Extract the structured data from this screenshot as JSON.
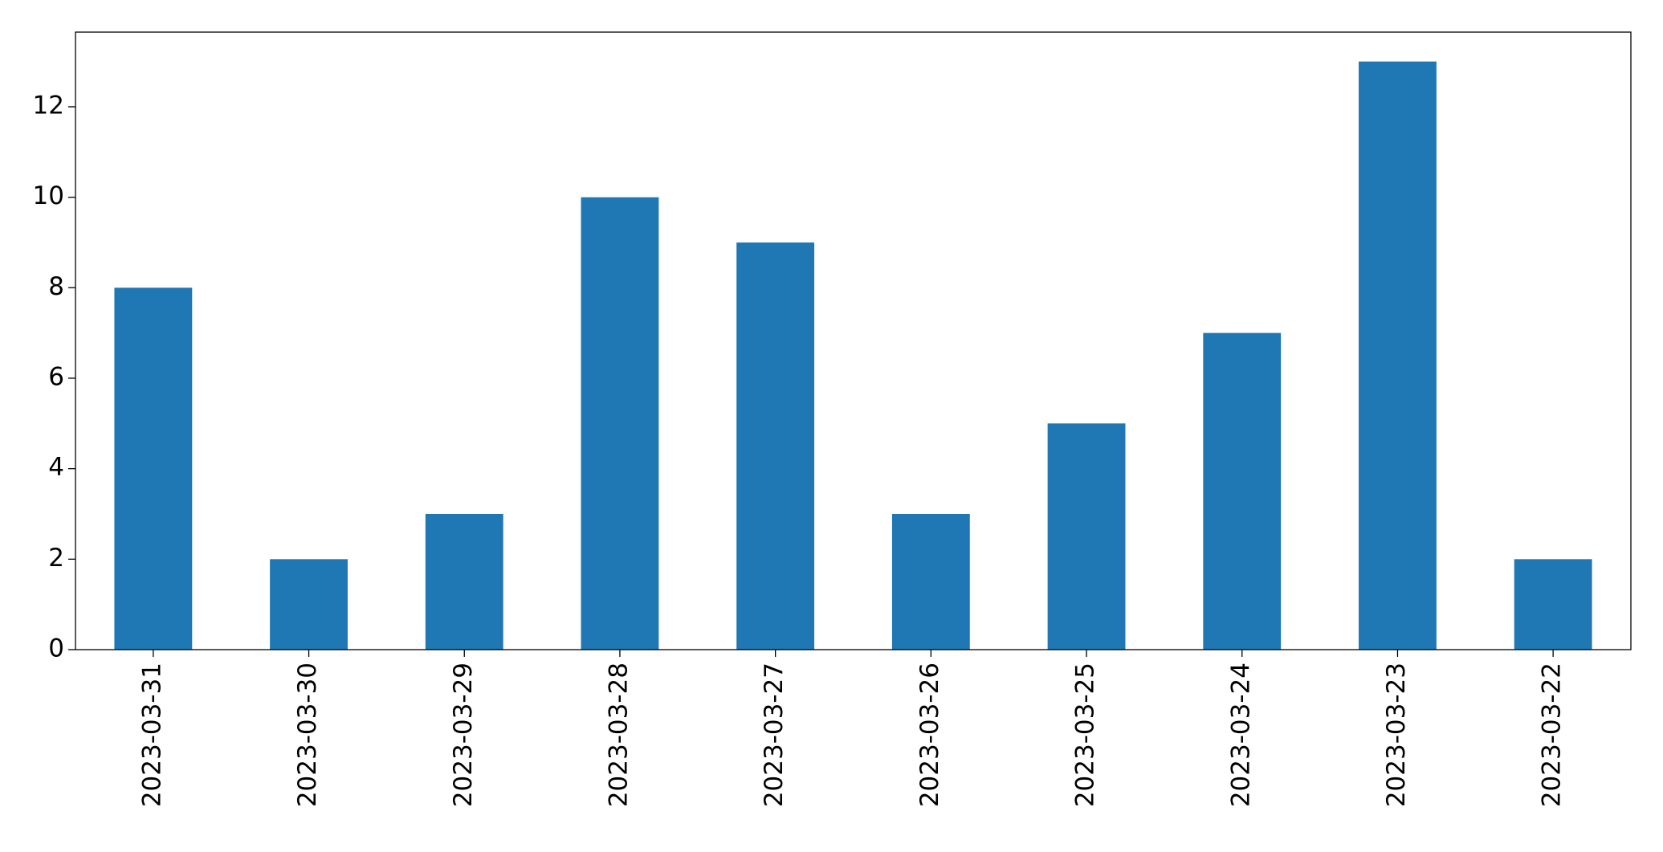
{
  "chart_data": {
    "type": "bar",
    "categories": [
      "2023-03-31",
      "2023-03-30",
      "2023-03-29",
      "2023-03-28",
      "2023-03-27",
      "2023-03-26",
      "2023-03-25",
      "2023-03-24",
      "2023-03-23",
      "2023-03-22"
    ],
    "values": [
      8,
      2,
      3,
      10,
      9,
      3,
      5,
      7,
      13,
      2
    ],
    "color": "#1f77b4",
    "ylim": [
      0,
      13.65
    ],
    "yticks": [
      0,
      2,
      4,
      6,
      8,
      10,
      12
    ],
    "grid": false
  }
}
